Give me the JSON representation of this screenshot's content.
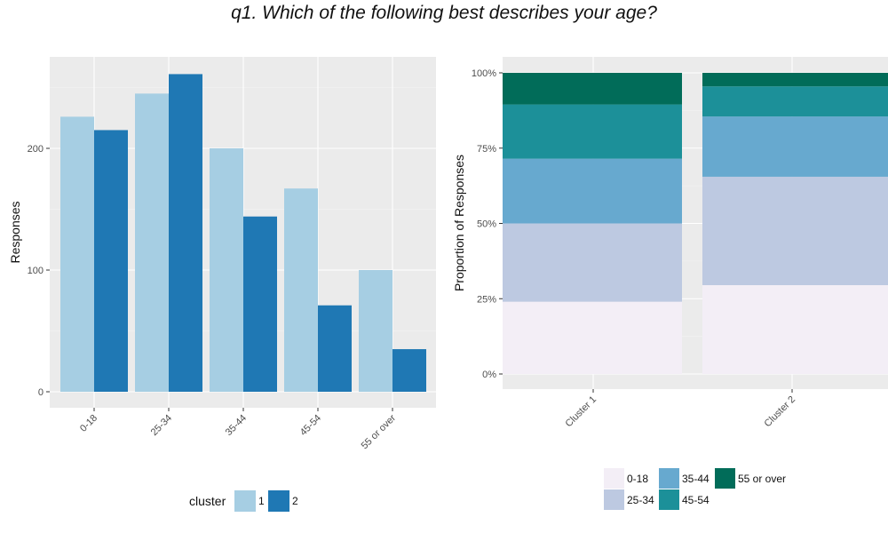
{
  "title": "q1. Which of the following best describes your age?",
  "chart_data": [
    {
      "type": "bar",
      "title": "",
      "xlabel": "",
      "ylabel": "Responses",
      "categories": [
        "0-18",
        "25-34",
        "35-44",
        "45-54",
        "55 or over"
      ],
      "series": [
        {
          "name": "1",
          "values": [
            226,
            245,
            200,
            167,
            100
          ]
        },
        {
          "name": "2",
          "values": [
            215,
            261,
            144,
            71,
            35
          ]
        }
      ],
      "ylim": [
        0,
        260
      ],
      "yticks": [
        0,
        100,
        200
      ],
      "grid": true,
      "legend": {
        "title": "cluster",
        "position": "bottom"
      },
      "colors": {
        "1": "#a6cee3",
        "2": "#1f78b4"
      }
    },
    {
      "type": "bar",
      "stacked": "percent",
      "title": "",
      "xlabel": "",
      "ylabel": "Proportion of Responses",
      "categories": [
        "Cluster 1",
        "Cluster 2"
      ],
      "series": [
        {
          "name": "0-18",
          "values": [
            0.24,
            0.295
          ]
        },
        {
          "name": "25-34",
          "values": [
            0.26,
            0.36
          ]
        },
        {
          "name": "35-44",
          "values": [
            0.215,
            0.2
          ]
        },
        {
          "name": "45-54",
          "values": [
            0.18,
            0.1
          ]
        },
        {
          "name": "55 or over",
          "values": [
            0.105,
            0.045
          ]
        }
      ],
      "ylim": [
        0,
        1
      ],
      "yticks": [
        "0%",
        "25%",
        "50%",
        "75%",
        "100%"
      ],
      "grid": true,
      "legend": {
        "title": "",
        "position": "bottom"
      },
      "colors": {
        "0-18": "#f3eef6",
        "25-34": "#bdc9e1",
        "35-44": "#67a9cf",
        "45-54": "#1c9099",
        "55 or over": "#016c59"
      }
    }
  ]
}
